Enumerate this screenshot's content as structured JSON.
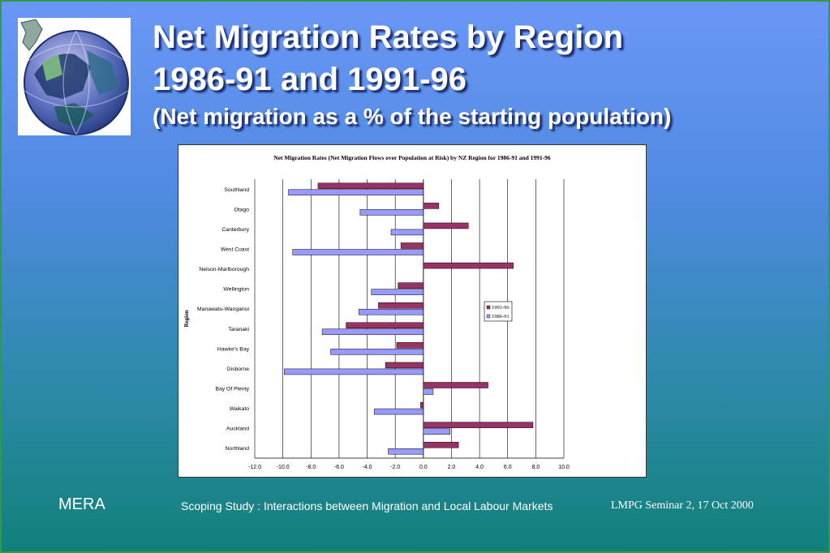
{
  "slide": {
    "title_line1": "Net Migration Rates by Region",
    "title_line2": "1986-91 and 1991-96",
    "title_line3": "(Net migration as a % of the starting population)",
    "footer_left": "MERA",
    "footer_center": "Scoping Study : Interactions between Migration and Local Labour Markets",
    "footer_right": "LMPG Seminar 2, 17 Oct 2000"
  },
  "chart_data": {
    "type": "bar",
    "orientation": "horizontal",
    "title": "Net Migration Rates (Net Migration Flows over Population at Risk) by NZ Region for 1986-91 and 1991-96",
    "ylabel": "Region",
    "xlabel": "",
    "categories": [
      "Southland",
      "Otago",
      "Canterbury",
      "West Coast",
      "Nelson-Marlborough",
      "Wellington",
      "Manawatu-Wanganui",
      "Taranaki",
      "Hawke's Bay",
      "Gisborne",
      "Bay Of Plenty",
      "Waikato",
      "Auckland",
      "Northland"
    ],
    "series": [
      {
        "name": "1991-96",
        "color": "#993366",
        "values": [
          -7.5,
          1.1,
          3.2,
          -1.6,
          6.4,
          -1.8,
          -3.2,
          -5.5,
          -1.9,
          -2.7,
          4.6,
          -0.2,
          7.8,
          2.5
        ]
      },
      {
        "name": "1986-91",
        "color": "#9999ff",
        "values": [
          -9.6,
          -4.5,
          -2.3,
          -9.3,
          0.0,
          -3.7,
          -4.6,
          -7.2,
          -6.6,
          -9.9,
          0.7,
          -3.5,
          1.9,
          -2.5
        ]
      }
    ],
    "xlim": [
      -12,
      10
    ],
    "xticks": [
      "-12.0",
      "-10.0",
      "-8.0",
      "-6.0",
      "-4.0",
      "-2.0",
      "0.0",
      "2.0",
      "4.0",
      "6.0",
      "8.0",
      "10.0"
    ],
    "grid": true,
    "legend_position": "right"
  }
}
